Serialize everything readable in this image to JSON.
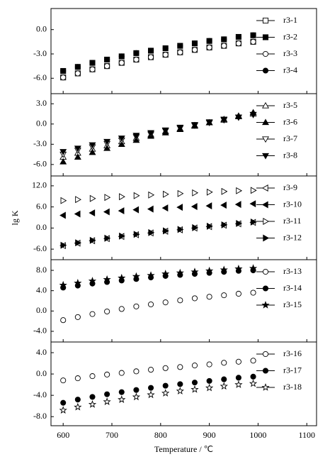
{
  "chart_data": [
    {
      "type": "scatter",
      "legend": "upper right",
      "xlim": [
        575,
        1120
      ],
      "xticks": [
        600,
        700,
        800,
        900,
        1000,
        1100
      ],
      "ylim": [
        -7.9,
        2.6
      ],
      "yticks": [
        {
          "value": 0,
          "label": "0.0"
        },
        {
          "value": -3,
          "label": "-3.0"
        },
        {
          "value": -6,
          "label": "-6.0"
        }
      ],
      "x": [
        600,
        630,
        660,
        690,
        720,
        750,
        780,
        810,
        840,
        870,
        900,
        930,
        960,
        990
      ],
      "series": [
        {
          "name": "r3-1",
          "color": "#000000",
          "marker": "square",
          "filled": false,
          "values": [
            -5.9,
            -5.4,
            -4.9,
            -4.5,
            -4.1,
            -3.7,
            -3.4,
            -3.1,
            -2.8,
            -2.5,
            -2.2,
            -2.0,
            -1.7,
            -1.5
          ]
        },
        {
          "name": "r3-2",
          "color": "#000000",
          "marker": "square",
          "filled": true,
          "values": [
            -5.1,
            -4.6,
            -4.1,
            -3.7,
            -3.3,
            -2.9,
            -2.6,
            -2.3,
            -2.0,
            -1.7,
            -1.4,
            -1.2,
            -0.9,
            -0.7
          ]
        },
        {
          "name": "r3-3",
          "color": "#000000",
          "marker": "circle",
          "filled": false,
          "values": [
            -5.9,
            -5.4,
            -4.9,
            -4.5,
            -4.1,
            -3.7,
            -3.4,
            -3.1,
            -2.8,
            -2.5,
            -2.2,
            -2.0,
            -1.7,
            -1.5
          ]
        },
        {
          "name": "r3-4",
          "color": "#000000",
          "marker": "circle",
          "filled": true,
          "values": [
            -5.1,
            -4.6,
            -4.1,
            -3.7,
            -3.3,
            -2.9,
            -2.6,
            -2.3,
            -2.0,
            -1.7,
            -1.4,
            -1.2,
            -0.9,
            -0.7
          ]
        }
      ]
    },
    {
      "type": "scatter",
      "legend": "upper right",
      "xlim": [
        575,
        1120
      ],
      "xticks": [
        600,
        700,
        800,
        900,
        1000,
        1100
      ],
      "ylim": [
        -7.7,
        4.5
      ],
      "yticks": [
        {
          "value": 3,
          "label": "3.0"
        },
        {
          "value": 0,
          "label": "0.0"
        },
        {
          "value": -3,
          "label": "-3.0"
        },
        {
          "value": -6,
          "label": "-6.0"
        }
      ],
      "x": [
        600,
        630,
        660,
        690,
        720,
        750,
        780,
        810,
        840,
        870,
        900,
        930,
        960,
        990
      ],
      "series": [
        {
          "name": "r3-5",
          "color": "#000000",
          "marker": "triangle-up",
          "filled": false,
          "values": [
            -4.9,
            -4.3,
            -3.7,
            -3.2,
            -2.6,
            -2.1,
            -1.6,
            -1.1,
            -0.7,
            -0.2,
            0.2,
            0.6,
            1.1,
            1.5
          ]
        },
        {
          "name": "r3-6",
          "color": "#000000",
          "marker": "triangle-up",
          "filled": true,
          "values": [
            -5.6,
            -4.9,
            -4.2,
            -3.6,
            -3.0,
            -2.4,
            -1.8,
            -1.3,
            -0.8,
            -0.3,
            0.2,
            0.7,
            1.2,
            1.7
          ]
        },
        {
          "name": "r3-7",
          "color": "#000000",
          "marker": "triangle-down",
          "filled": false,
          "values": [
            -4.5,
            -3.9,
            -3.4,
            -2.9,
            -2.4,
            -1.9,
            -1.5,
            -1.0,
            -0.6,
            -0.2,
            0.2,
            0.6,
            1.0,
            1.4
          ]
        },
        {
          "name": "r3-8",
          "color": "#000000",
          "marker": "triangle-down",
          "filled": true,
          "values": [
            -4.1,
            -3.6,
            -3.1,
            -2.6,
            -2.1,
            -1.7,
            -1.3,
            -0.9,
            -0.5,
            -0.1,
            0.3,
            0.7,
            1.0,
            1.4
          ]
        }
      ]
    },
    {
      "type": "scatter",
      "legend": "upper right",
      "y_label": "lg K",
      "xlim": [
        575,
        1120
      ],
      "xticks": [
        600,
        700,
        800,
        900,
        1000,
        1100
      ],
      "ylim": [
        -9.0,
        14.8
      ],
      "yticks": [
        {
          "value": 12,
          "label": "12.0"
        },
        {
          "value": 6,
          "label": "6.0"
        },
        {
          "value": 0,
          "label": "0.0"
        },
        {
          "value": -6,
          "label": "-6.0"
        }
      ],
      "x": [
        600,
        630,
        660,
        690,
        720,
        750,
        780,
        810,
        840,
        870,
        900,
        930,
        960,
        990
      ],
      "series": [
        {
          "name": "r3-9",
          "color": "#000000",
          "marker": "triangle-left",
          "filled": false,
          "values": [
            -5.0,
            -4.3,
            -3.6,
            -3.0,
            -2.4,
            -1.9,
            -1.4,
            -0.9,
            -0.5,
            0.0,
            0.4,
            0.8,
            1.2,
            1.6
          ]
        },
        {
          "name": "r3-10",
          "color": "#000000",
          "marker": "triangle-left",
          "filled": true,
          "values": [
            3.6,
            4.0,
            4.3,
            4.6,
            4.9,
            5.2,
            5.4,
            5.7,
            5.9,
            6.1,
            6.3,
            6.5,
            6.7,
            6.9
          ]
        },
        {
          "name": "r3-11",
          "color": "#000000",
          "marker": "triangle-right",
          "filled": false,
          "values": [
            7.8,
            8.1,
            8.4,
            8.7,
            8.9,
            9.2,
            9.4,
            9.6,
            9.8,
            10.0,
            10.2,
            10.4,
            10.6,
            10.7
          ]
        },
        {
          "name": "r3-12",
          "color": "#000000",
          "marker": "triangle-right",
          "filled": true,
          "values": [
            -4.9,
            -4.2,
            -3.5,
            -2.9,
            -2.3,
            -1.8,
            -1.3,
            -0.8,
            -0.4,
            0.1,
            0.5,
            0.9,
            1.3,
            1.7
          ]
        }
      ]
    },
    {
      "type": "scatter",
      "legend": "upper right",
      "xlim": [
        575,
        1120
      ],
      "xticks": [
        600,
        700,
        800,
        900,
        1000,
        1100
      ],
      "ylim": [
        -6.1,
        10.1
      ],
      "yticks": [
        {
          "value": 8,
          "label": "8.0"
        },
        {
          "value": 4,
          "label": "4.0"
        },
        {
          "value": 0,
          "label": "0.0"
        },
        {
          "value": -4,
          "label": "-4.0"
        }
      ],
      "x": [
        600,
        630,
        660,
        690,
        720,
        750,
        780,
        810,
        840,
        870,
        900,
        930,
        960,
        990
      ],
      "series": [
        {
          "name": "r3-13",
          "color": "#000000",
          "marker": "circle",
          "filled": false,
          "values": [
            -1.8,
            -1.2,
            -0.6,
            -0.1,
            0.4,
            0.9,
            1.3,
            1.7,
            2.1,
            2.5,
            2.8,
            3.1,
            3.4,
            3.6
          ]
        },
        {
          "name": "r3-14",
          "color": "#000000",
          "marker": "circle",
          "filled": true,
          "values": [
            4.6,
            5.0,
            5.4,
            5.7,
            6.0,
            6.3,
            6.6,
            6.9,
            7.1,
            7.3,
            7.5,
            7.7,
            7.9,
            8.0
          ]
        },
        {
          "name": "r3-15",
          "color": "#000000",
          "marker": "star",
          "filled": true,
          "values": [
            5.1,
            5.5,
            5.9,
            6.2,
            6.5,
            6.8,
            7.0,
            7.3,
            7.5,
            7.7,
            7.9,
            8.1,
            8.3,
            8.4
          ]
        }
      ]
    },
    {
      "type": "scatter",
      "legend": "upper right",
      "x_label": "Temperature / ℃",
      "xlim": [
        575,
        1120
      ],
      "xticks": [
        600,
        700,
        800,
        900,
        1000,
        1100
      ],
      "ylim": [
        -9.7,
        6.0
      ],
      "yticks": [
        {
          "value": 4,
          "label": "4.0"
        },
        {
          "value": 0,
          "label": "0.0"
        },
        {
          "value": -4,
          "label": "-4.0"
        },
        {
          "value": -8,
          "label": "-8.0"
        }
      ],
      "x": [
        600,
        630,
        660,
        690,
        720,
        750,
        780,
        810,
        840,
        870,
        900,
        930,
        960,
        990
      ],
      "series": [
        {
          "name": "r3-16",
          "color": "#000000",
          "marker": "circle",
          "filled": false,
          "values": [
            -1.2,
            -0.8,
            -0.4,
            -0.1,
            0.2,
            0.5,
            0.8,
            1.1,
            1.3,
            1.6,
            1.8,
            2.1,
            2.3,
            2.5
          ]
        },
        {
          "name": "r3-17",
          "color": "#000000",
          "marker": "circle",
          "filled": true,
          "values": [
            -5.4,
            -4.8,
            -4.3,
            -3.8,
            -3.4,
            -3.0,
            -2.6,
            -2.2,
            -1.9,
            -1.6,
            -1.3,
            -1.0,
            -0.7,
            -0.5
          ]
        },
        {
          "name": "r3-18",
          "color": "#000000",
          "marker": "star",
          "filled": false,
          "values": [
            -6.8,
            -6.2,
            -5.7,
            -5.2,
            -4.8,
            -4.3,
            -3.9,
            -3.6,
            -3.2,
            -2.9,
            -2.6,
            -2.3,
            -2.0,
            -1.8
          ]
        }
      ]
    }
  ]
}
